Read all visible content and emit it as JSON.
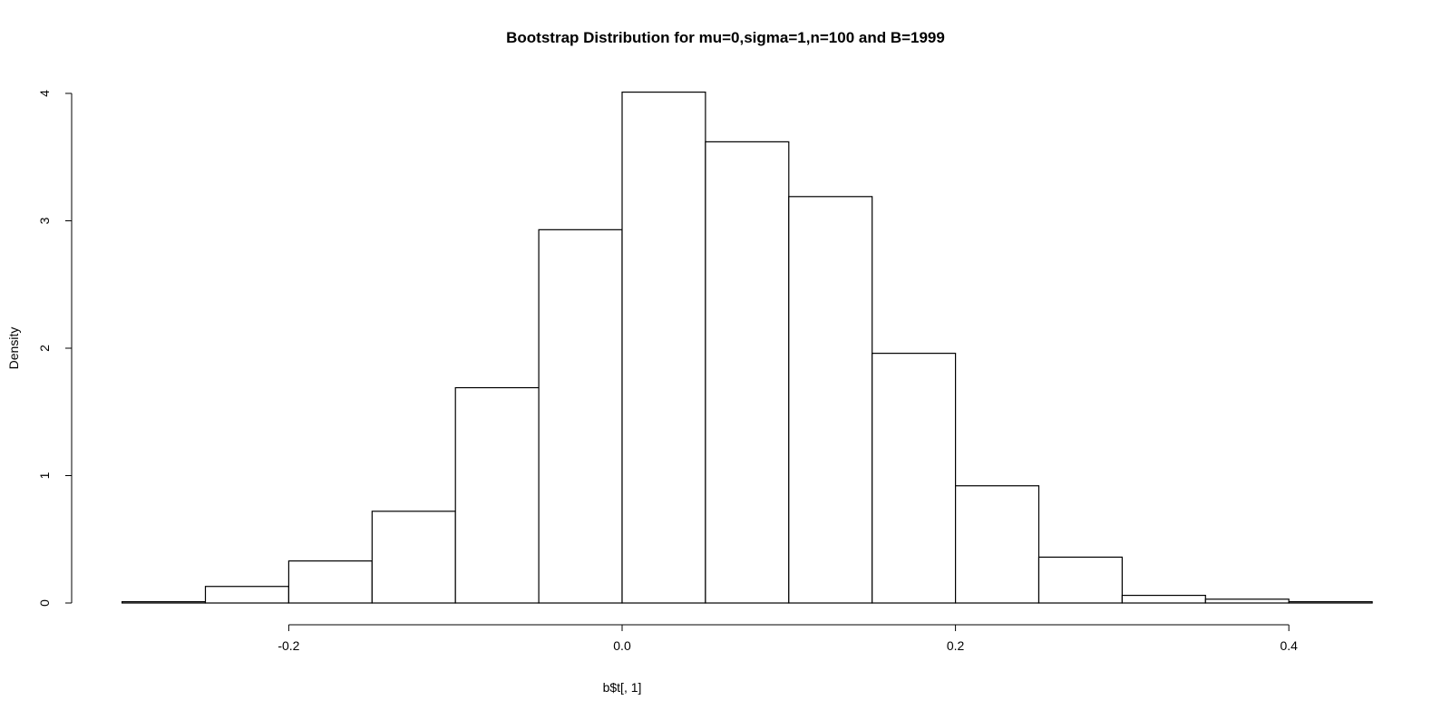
{
  "chart_data": {
    "type": "bar",
    "title": "Bootstrap Distribution for mu=0,sigma=1,n=100 and B=1999",
    "xlabel": "b$t[, 1]",
    "ylabel": "Density",
    "xlim": [
      -0.3,
      0.45
    ],
    "ylim": [
      0,
      4
    ],
    "x_ticks": [
      -0.2,
      0.0,
      0.2,
      0.4
    ],
    "x_tick_labels": [
      "-0.2",
      "0.0",
      "0.2",
      "0.4"
    ],
    "y_ticks": [
      0,
      1,
      2,
      3,
      4
    ],
    "y_tick_labels": [
      "0",
      "1",
      "2",
      "3",
      "4"
    ],
    "grid": false,
    "bins": [
      {
        "x0": -0.3,
        "x1": -0.25,
        "density": 0.01
      },
      {
        "x0": -0.25,
        "x1": -0.2,
        "density": 0.13
      },
      {
        "x0": -0.2,
        "x1": -0.15,
        "density": 0.33
      },
      {
        "x0": -0.15,
        "x1": -0.1,
        "density": 0.72
      },
      {
        "x0": -0.1,
        "x1": -0.05,
        "density": 1.69
      },
      {
        "x0": -0.05,
        "x1": 0.0,
        "density": 2.93
      },
      {
        "x0": 0.0,
        "x1": 0.05,
        "density": 4.01
      },
      {
        "x0": 0.05,
        "x1": 0.1,
        "density": 3.62
      },
      {
        "x0": 0.1,
        "x1": 0.15,
        "density": 3.19
      },
      {
        "x0": 0.15,
        "x1": 0.2,
        "density": 1.96
      },
      {
        "x0": 0.2,
        "x1": 0.25,
        "density": 0.92
      },
      {
        "x0": 0.25,
        "x1": 0.3,
        "density": 0.36
      },
      {
        "x0": 0.3,
        "x1": 0.35,
        "density": 0.06
      },
      {
        "x0": 0.35,
        "x1": 0.4,
        "density": 0.03
      },
      {
        "x0": 0.4,
        "x1": 0.45,
        "density": 0.01
      }
    ]
  }
}
